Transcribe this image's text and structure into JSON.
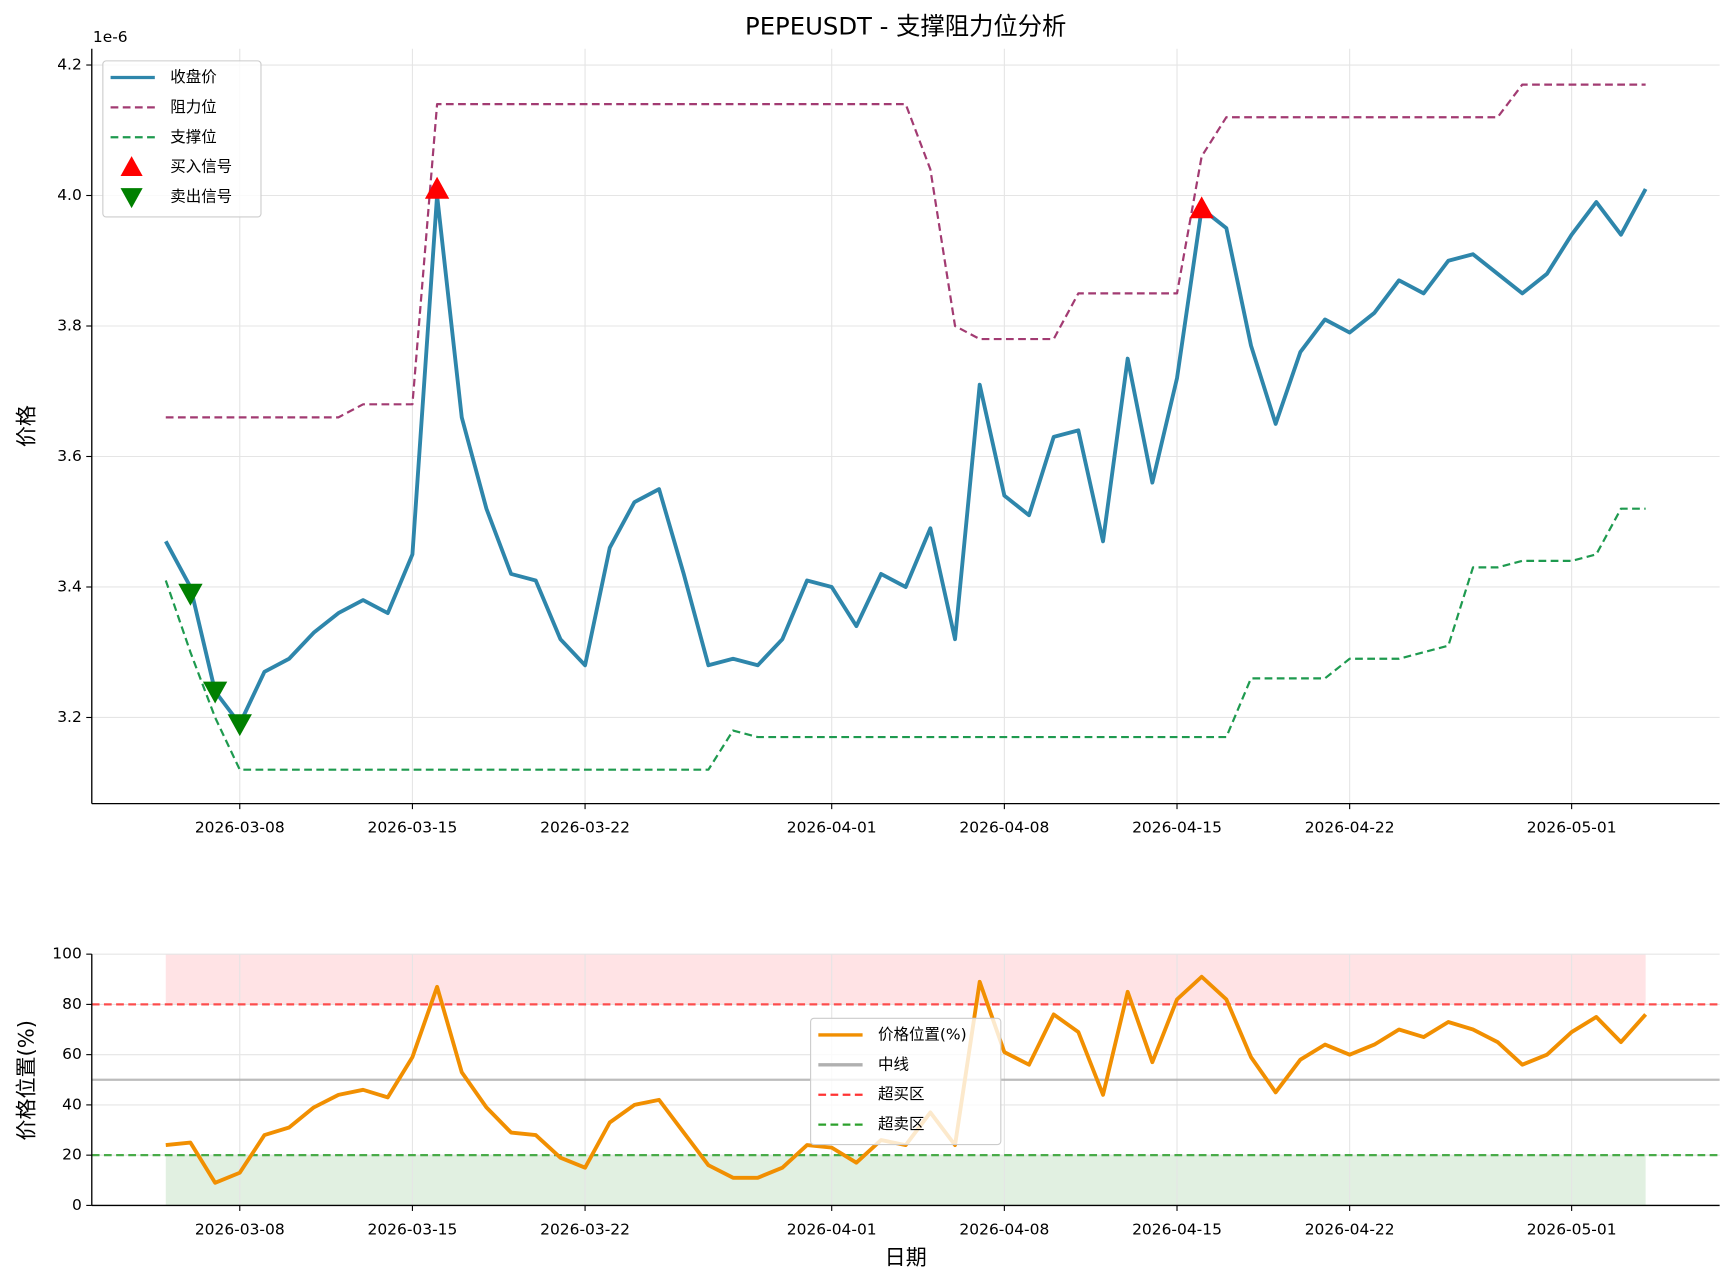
{
  "chart_data": [
    {
      "type": "line",
      "title": "PEPEUSDT - 支撑阻力位分析",
      "y_label": "价格",
      "offset_text": "1e-6",
      "x": [
        "2026-03-05",
        "2026-03-06",
        "2026-03-07",
        "2026-03-08",
        "2026-03-09",
        "2026-03-10",
        "2026-03-11",
        "2026-03-12",
        "2026-03-13",
        "2026-03-14",
        "2026-03-15",
        "2026-03-16",
        "2026-03-17",
        "2026-03-18",
        "2026-03-19",
        "2026-03-20",
        "2026-03-21",
        "2026-03-22",
        "2026-03-23",
        "2026-03-24",
        "2026-03-25",
        "2026-03-26",
        "2026-03-27",
        "2026-03-28",
        "2026-03-29",
        "2026-03-30",
        "2026-03-31",
        "2026-04-01",
        "2026-04-02",
        "2026-04-03",
        "2026-04-04",
        "2026-04-05",
        "2026-04-06",
        "2026-04-07",
        "2026-04-08",
        "2026-04-09",
        "2026-04-10",
        "2026-04-11",
        "2026-04-12",
        "2026-04-13",
        "2026-04-14",
        "2026-04-15",
        "2026-04-16",
        "2026-04-17",
        "2026-04-18",
        "2026-04-19",
        "2026-04-20",
        "2026-04-21",
        "2026-04-22",
        "2026-04-23",
        "2026-04-24",
        "2026-04-25",
        "2026-04-26",
        "2026-04-27",
        "2026-04-28",
        "2026-04-29",
        "2026-04-30",
        "2026-05-01",
        "2026-05-02",
        "2026-05-03",
        "2026-05-04"
      ],
      "series": [
        {
          "name": "收盘价",
          "color": "#2e86ab",
          "style": "solid",
          "values": [
            3.47,
            3.4,
            3.24,
            3.19,
            3.27,
            3.29,
            3.33,
            3.36,
            3.38,
            3.36,
            3.45,
            4.0,
            3.66,
            3.52,
            3.42,
            3.41,
            3.32,
            3.28,
            3.46,
            3.53,
            3.55,
            3.42,
            3.28,
            3.29,
            3.28,
            3.32,
            3.41,
            3.4,
            3.34,
            3.42,
            3.4,
            3.49,
            3.32,
            3.71,
            3.54,
            3.51,
            3.63,
            3.64,
            3.47,
            3.75,
            3.56,
            3.72,
            3.98,
            3.95,
            3.77,
            3.65,
            3.76,
            3.81,
            3.79,
            3.82,
            3.87,
            3.85,
            3.9,
            3.91,
            3.88,
            3.85,
            3.88,
            3.94,
            3.99,
            3.94,
            4.01
          ]
        },
        {
          "name": "阻力位",
          "color": "#a23b72",
          "style": "dashed",
          "values": [
            3.66,
            3.66,
            3.66,
            3.66,
            3.66,
            3.66,
            3.66,
            3.66,
            3.68,
            3.68,
            3.68,
            4.14,
            4.14,
            4.14,
            4.14,
            4.14,
            4.14,
            4.14,
            4.14,
            4.14,
            4.14,
            4.14,
            4.14,
            4.14,
            4.14,
            4.14,
            4.14,
            4.14,
            4.14,
            4.14,
            4.14,
            4.04,
            3.8,
            3.78,
            3.78,
            3.78,
            3.78,
            3.85,
            3.85,
            3.85,
            3.85,
            3.85,
            4.06,
            4.12,
            4.12,
            4.12,
            4.12,
            4.12,
            4.12,
            4.12,
            4.12,
            4.12,
            4.12,
            4.12,
            4.12,
            4.17,
            4.17,
            4.17,
            4.17,
            4.17,
            4.17
          ]
        },
        {
          "name": "支撑位",
          "color": "#1e9a4f",
          "style": "dashed",
          "values": [
            3.41,
            3.3,
            3.2,
            3.12,
            3.12,
            3.12,
            3.12,
            3.12,
            3.12,
            3.12,
            3.12,
            3.12,
            3.12,
            3.12,
            3.12,
            3.12,
            3.12,
            3.12,
            3.12,
            3.12,
            3.12,
            3.12,
            3.12,
            3.18,
            3.17,
            3.17,
            3.17,
            3.17,
            3.17,
            3.17,
            3.17,
            3.17,
            3.17,
            3.17,
            3.17,
            3.17,
            3.17,
            3.17,
            3.17,
            3.17,
            3.17,
            3.17,
            3.17,
            3.17,
            3.26,
            3.26,
            3.26,
            3.26,
            3.29,
            3.29,
            3.29,
            3.3,
            3.31,
            3.43,
            3.43,
            3.44,
            3.44,
            3.44,
            3.45,
            3.52,
            3.52
          ]
        },
        {
          "name": "买入信号",
          "color": "#ff0000",
          "style": "triangle-up",
          "values": [
            null,
            null,
            null,
            null,
            null,
            null,
            null,
            null,
            null,
            null,
            null,
            4.01,
            null,
            null,
            null,
            null,
            null,
            null,
            null,
            null,
            null,
            null,
            null,
            null,
            null,
            null,
            null,
            null,
            null,
            null,
            null,
            null,
            null,
            null,
            null,
            null,
            null,
            null,
            null,
            null,
            null,
            null,
            3.98,
            null,
            null,
            null,
            null,
            null,
            null,
            null,
            null,
            null,
            null,
            null,
            null,
            null,
            null,
            null,
            null,
            null,
            null
          ]
        },
        {
          "name": "卖出信号",
          "color": "#008000",
          "style": "triangle-down",
          "values": [
            null,
            3.39,
            3.24,
            3.19,
            null,
            null,
            null,
            null,
            null,
            null,
            null,
            null,
            null,
            null,
            null,
            null,
            null,
            null,
            null,
            null,
            null,
            null,
            null,
            null,
            null,
            null,
            null,
            null,
            null,
            null,
            null,
            null,
            null,
            null,
            null,
            null,
            null,
            null,
            null,
            null,
            null,
            null,
            null,
            null,
            null,
            null,
            null,
            null,
            null,
            null,
            null,
            null,
            null,
            null,
            null,
            null,
            null,
            null,
            null,
            null,
            null
          ]
        }
      ],
      "xlim": [
        "2026-03-02",
        "2026-05-07"
      ],
      "xticks": [
        "2026-03-08",
        "2026-03-15",
        "2026-03-22",
        "2026-04-01",
        "2026-04-08",
        "2026-04-15",
        "2026-04-22",
        "2026-05-01"
      ],
      "ylim": [
        3.068,
        4.225
      ],
      "yticks": [
        3.2,
        3.4,
        3.6,
        3.8,
        {
          "value": 4,
          "label": "4.0"
        },
        4.2
      ],
      "grid": true,
      "legend": "upper left"
    },
    {
      "type": "line",
      "y_label": "价格位置(%)",
      "x_label": "日期",
      "x": [
        "2026-03-05",
        "2026-03-06",
        "2026-03-07",
        "2026-03-08",
        "2026-03-09",
        "2026-03-10",
        "2026-03-11",
        "2026-03-12",
        "2026-03-13",
        "2026-03-14",
        "2026-03-15",
        "2026-03-16",
        "2026-03-17",
        "2026-03-18",
        "2026-03-19",
        "2026-03-20",
        "2026-03-21",
        "2026-03-22",
        "2026-03-23",
        "2026-03-24",
        "2026-03-25",
        "2026-03-26",
        "2026-03-27",
        "2026-03-28",
        "2026-03-29",
        "2026-03-30",
        "2026-03-31",
        "2026-04-01",
        "2026-04-02",
        "2026-04-03",
        "2026-04-04",
        "2026-04-05",
        "2026-04-06",
        "2026-04-07",
        "2026-04-08",
        "2026-04-09",
        "2026-04-10",
        "2026-04-11",
        "2026-04-12",
        "2026-04-13",
        "2026-04-14",
        "2026-04-15",
        "2026-04-16",
        "2026-04-17",
        "2026-04-18",
        "2026-04-19",
        "2026-04-20",
        "2026-04-21",
        "2026-04-22",
        "2026-04-23",
        "2026-04-24",
        "2026-04-25",
        "2026-04-26",
        "2026-04-27",
        "2026-04-28",
        "2026-04-29",
        "2026-04-30",
        "2026-05-01",
        "2026-05-02",
        "2026-05-03",
        "2026-05-04"
      ],
      "series": [
        {
          "name": "价格位置(%)",
          "color": "#f18f01",
          "style": "solid",
          "values": [
            24,
            25,
            9,
            13,
            28,
            31,
            39,
            44,
            46,
            43,
            59,
            87,
            53,
            39,
            29,
            28,
            19,
            15,
            33,
            40,
            42,
            29,
            16,
            11,
            11,
            15,
            24,
            23,
            17,
            26,
            24,
            37,
            24,
            89,
            61,
            56,
            76,
            69,
            44,
            85,
            57,
            82,
            91,
            82,
            59,
            45,
            58,
            64,
            60,
            64,
            70,
            67,
            73,
            70,
            65,
            56,
            60,
            69,
            75,
            65,
            76
          ]
        }
      ],
      "hlines": [
        {
          "name": "中线",
          "value": 50,
          "color": "#b0b0b0",
          "style": "solid"
        },
        {
          "name": "超买区",
          "value": 80,
          "color": "#ff3333",
          "style": "dashed"
        },
        {
          "name": "超卖区",
          "value": 20,
          "color": "#2ca02c",
          "style": "dashed"
        }
      ],
      "bands": [
        {
          "from": 80,
          "to": 100,
          "color": "#ffcccf"
        },
        {
          "from": 0,
          "to": 20,
          "color": "#c8e3c8"
        }
      ],
      "xlim": [
        "2026-03-02",
        "2026-05-07"
      ],
      "xticks": [
        "2026-03-08",
        "2026-03-15",
        "2026-03-22",
        "2026-04-01",
        "2026-04-08",
        "2026-04-15",
        "2026-04-22",
        "2026-05-01"
      ],
      "ylim": [
        0,
        100
      ],
      "yticks": [
        0,
        20,
        40,
        60,
        80,
        100
      ],
      "grid": true,
      "legend": "center"
    }
  ]
}
